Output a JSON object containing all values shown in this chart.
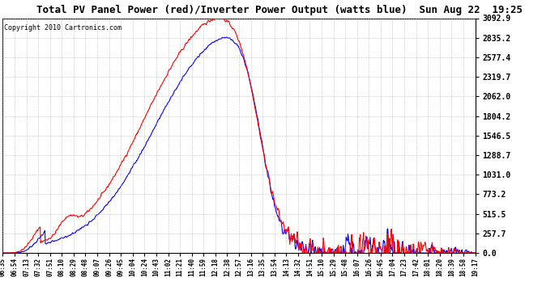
{
  "title": "Total PV Panel Power (red)/Inverter Power Output (watts blue)  Sun Aug 22  19:25",
  "copyright": "Copyright 2010 Cartronics.com",
  "y_ticks": [
    0.0,
    257.7,
    515.5,
    773.2,
    1031.0,
    1288.7,
    1546.5,
    1804.2,
    2062.0,
    2319.7,
    2577.4,
    2835.2,
    3092.9
  ],
  "ylim": [
    0,
    3092.9
  ],
  "x_labels": [
    "06:35",
    "06:54",
    "07:13",
    "07:32",
    "07:51",
    "08:10",
    "08:29",
    "08:48",
    "09:07",
    "09:26",
    "09:45",
    "10:04",
    "10:24",
    "10:43",
    "11:02",
    "11:21",
    "11:40",
    "11:59",
    "12:18",
    "12:38",
    "12:57",
    "13:16",
    "13:35",
    "13:54",
    "14:13",
    "14:32",
    "14:51",
    "15:10",
    "15:29",
    "15:48",
    "16:07",
    "16:26",
    "16:45",
    "17:04",
    "17:23",
    "17:42",
    "18:01",
    "18:20",
    "18:39",
    "18:58",
    "19:17"
  ],
  "bg_color": "#ffffff",
  "plot_bg_color": "#ffffff",
  "grid_color": "#aaaaaa",
  "red_line_color": "#ff0000",
  "blue_line_color": "#0000ff",
  "title_color": "#000000",
  "copyright_color": "#000000",
  "title_fontsize": 9,
  "tick_fontsize": 7,
  "xlabel_fontsize": 5.5
}
